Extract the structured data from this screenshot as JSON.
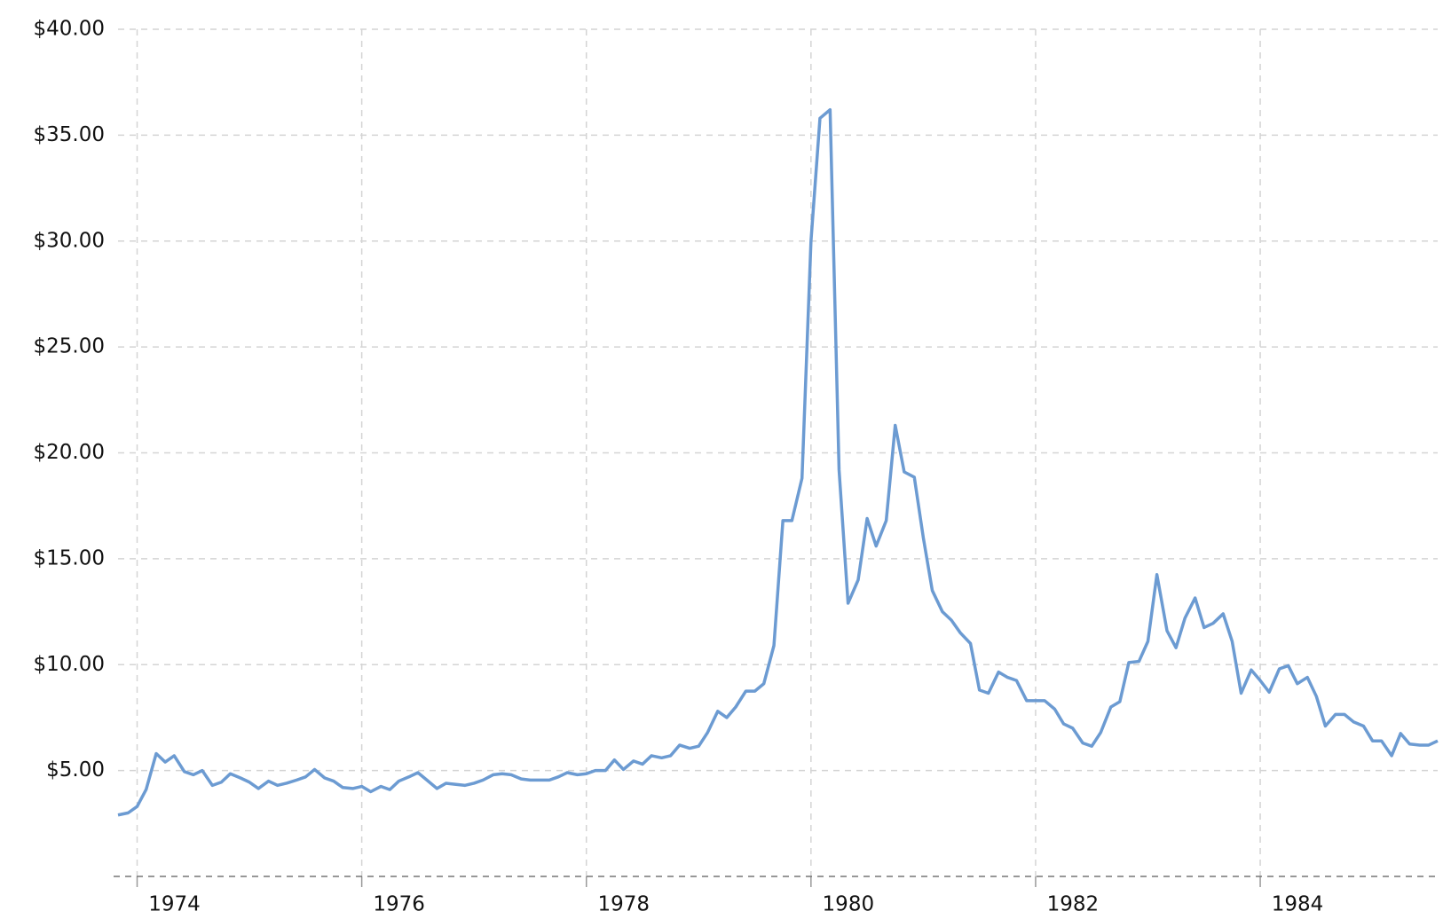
{
  "chart_data": {
    "type": "line",
    "x": [
      1973.83,
      1973.92,
      1974,
      1974.08,
      1974.17,
      1974.25,
      1974.33,
      1974.42,
      1974.5,
      1974.58,
      1974.67,
      1974.75,
      1974.83,
      1974.92,
      1975,
      1975.08,
      1975.17,
      1975.25,
      1975.33,
      1975.42,
      1975.5,
      1975.58,
      1975.67,
      1975.75,
      1975.83,
      1975.92,
      1976,
      1976.08,
      1976.17,
      1976.25,
      1976.33,
      1976.42,
      1976.5,
      1976.58,
      1976.67,
      1976.75,
      1976.83,
      1976.92,
      1977,
      1977.08,
      1977.17,
      1977.25,
      1977.33,
      1977.42,
      1977.5,
      1977.58,
      1977.67,
      1977.75,
      1977.83,
      1977.92,
      1978,
      1978.08,
      1978.17,
      1978.25,
      1978.33,
      1978.42,
      1978.5,
      1978.58,
      1978.67,
      1978.75,
      1978.83,
      1978.92,
      1979,
      1979.08,
      1979.17,
      1979.25,
      1979.33,
      1979.42,
      1979.5,
      1979.58,
      1979.67,
      1979.75,
      1979.83,
      1979.92,
      1980,
      1980.08,
      1980.17,
      1980.25,
      1980.33,
      1980.42,
      1980.5,
      1980.58,
      1980.67,
      1980.75,
      1980.83,
      1980.92,
      1981,
      1981.08,
      1981.17,
      1981.25,
      1981.33,
      1981.42,
      1981.5,
      1981.58,
      1981.67,
      1981.75,
      1981.83,
      1981.92,
      1982,
      1982.08,
      1982.17,
      1982.25,
      1982.33,
      1982.42,
      1982.5,
      1982.58,
      1982.67,
      1982.75,
      1982.83,
      1982.92,
      1983,
      1983.08,
      1983.17,
      1983.25,
      1983.33,
      1983.42,
      1983.5,
      1983.58,
      1983.67,
      1983.75,
      1983.83,
      1983.92,
      1984,
      1984.08,
      1984.17,
      1984.25,
      1984.33,
      1984.42,
      1984.5,
      1984.58,
      1984.67,
      1984.75,
      1984.83,
      1984.92,
      1985,
      1985.08,
      1985.17,
      1985.25,
      1985.33,
      1985.42,
      1985.5,
      1985.58
    ],
    "series": [
      {
        "color": "#6c9bd2",
        "values": [
          2.9,
          3.0,
          3.3,
          4.1,
          5.8,
          5.4,
          5.7,
          4.95,
          4.8,
          5.0,
          4.3,
          4.45,
          4.85,
          4.65,
          4.45,
          4.15,
          4.5,
          4.3,
          4.4,
          4.55,
          4.7,
          5.05,
          4.65,
          4.5,
          4.2,
          4.15,
          4.25,
          4.0,
          4.25,
          4.1,
          4.5,
          4.7,
          4.9,
          4.55,
          4.15,
          4.4,
          4.35,
          4.3,
          4.4,
          4.55,
          4.8,
          4.85,
          4.8,
          4.6,
          4.55,
          4.55,
          4.55,
          4.7,
          4.9,
          4.8,
          4.85,
          5.0,
          5.0,
          5.5,
          5.05,
          5.45,
          5.3,
          5.7,
          5.6,
          5.7,
          6.2,
          6.05,
          6.15,
          6.8,
          7.8,
          7.5,
          8.0,
          8.75,
          8.75,
          9.1,
          10.9,
          16.8,
          16.8,
          18.8,
          30,
          35.8,
          36.2,
          19.2,
          12.9,
          14.0,
          16.9,
          15.6,
          16.8,
          21.3,
          19.1,
          18.85,
          16.0,
          13.5,
          12.5,
          12.1,
          11.5,
          11.0,
          8.8,
          8.65,
          9.65,
          9.4,
          9.25,
          8.3,
          8.3,
          8.3,
          7.9,
          7.2,
          7.0,
          6.3,
          6.15,
          6.8,
          8.0,
          8.25,
          10.1,
          10.15,
          11.1,
          14.25,
          11.6,
          10.8,
          12.2,
          13.15,
          11.75,
          11.95,
          12.4,
          11.1,
          8.65,
          9.75,
          9.25,
          8.7,
          9.8,
          9.95,
          9.1,
          9.4,
          8.5,
          7.1,
          7.65,
          7.65,
          7.3,
          7.1,
          6.4,
          6.4,
          5.7,
          6.75,
          6.25,
          6.2,
          6.2,
          6.4
        ]
      }
    ],
    "xlim": [
      1973.83,
      1985.58
    ],
    "xticks": [
      1974,
      1976,
      1978,
      1980,
      1982,
      1984
    ],
    "ylim": [
      0,
      40
    ],
    "yticks": [
      {
        "value": 5,
        "label": "$5.00"
      },
      {
        "value": 10,
        "label": "$10.00"
      },
      {
        "value": 15,
        "label": "$15.00"
      },
      {
        "value": 20,
        "label": "$20.00"
      },
      {
        "value": 25,
        "label": "$25.00"
      },
      {
        "value": 30,
        "label": "$30.00"
      },
      {
        "value": 35,
        "label": "$35.00"
      },
      {
        "value": 40,
        "label": "$40.00"
      }
    ],
    "grid": true
  }
}
